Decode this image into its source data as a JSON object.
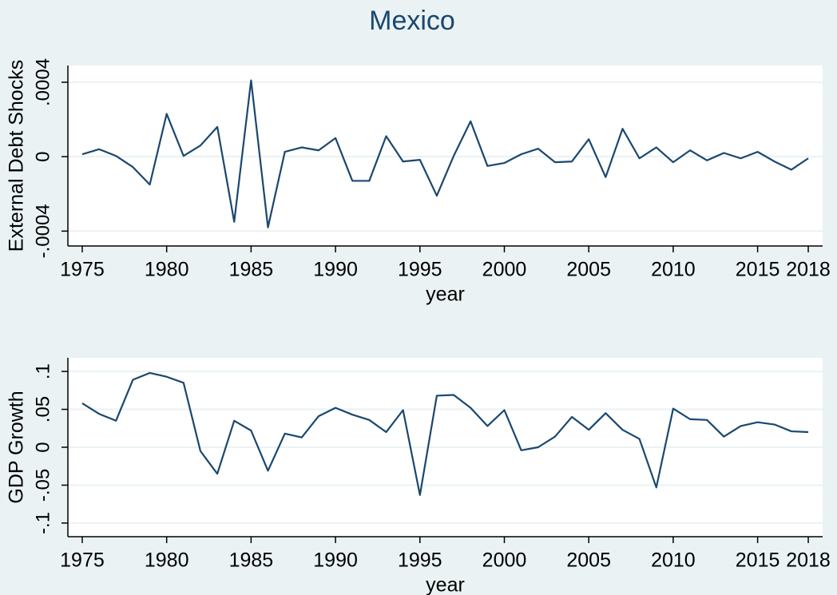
{
  "chart_data": [
    {
      "type": "line",
      "title": "Mexico",
      "xlabel": "year",
      "ylabel": "External Debt Shocks",
      "x": [
        1975,
        1976,
        1977,
        1978,
        1979,
        1980,
        1981,
        1982,
        1983,
        1984,
        1985,
        1986,
        1987,
        1988,
        1989,
        1990,
        1991,
        1992,
        1993,
        1994,
        1995,
        1996,
        1997,
        1998,
        1999,
        2000,
        2001,
        2002,
        2003,
        2004,
        2005,
        2006,
        2007,
        2008,
        2009,
        2010,
        2011,
        2012,
        2013,
        2014,
        2015,
        2016,
        2017,
        2018
      ],
      "series": [
        {
          "color": "#1a476f",
          "values": [
            1.3e-05,
            4e-05,
            4e-06,
            -5.6e-05,
            -0.00015,
            0.00023,
            4e-06,
            6e-05,
            0.00016,
            -0.00035,
            0.00041,
            -0.00038,
            2.6e-05,
            5e-05,
            3.4e-05,
            0.0001,
            -0.00013,
            -0.00013,
            0.00011,
            -2.6e-05,
            -1.7e-05,
            -0.00021,
            4e-06,
            0.00019,
            -5e-05,
            -3.4e-05,
            1.3e-05,
            4.3e-05,
            -3e-05,
            -2.6e-05,
            9.4e-05,
            -0.00011,
            0.00015,
            -9e-06,
            5e-05,
            -3e-05,
            3.4e-05,
            -2e-05,
            2e-05,
            -9e-06,
            2.6e-05,
            -2.6e-05,
            -7e-05,
            -9e-06
          ]
        }
      ],
      "xlim": [
        1974.15,
        2018.85
      ],
      "xticks": [
        1975,
        1980,
        1985,
        1990,
        1995,
        2000,
        2005,
        2010,
        2015,
        2018
      ],
      "ylim": [
        -0.00048,
        0.00049
      ],
      "yticks": [
        {
          "value": -0.0004,
          "label": "-.0004"
        },
        0,
        {
          "value": 0.0004,
          "label": ".0004"
        }
      ],
      "grid": true
    },
    {
      "type": "line",
      "xlabel": "year",
      "ylabel": "GDP Growth",
      "x": [
        1975,
        1976,
        1977,
        1978,
        1979,
        1980,
        1981,
        1982,
        1983,
        1984,
        1985,
        1986,
        1987,
        1988,
        1989,
        1990,
        1991,
        1992,
        1993,
        1994,
        1995,
        1996,
        1997,
        1998,
        1999,
        2000,
        2001,
        2002,
        2003,
        2004,
        2005,
        2006,
        2007,
        2008,
        2009,
        2010,
        2011,
        2012,
        2013,
        2014,
        2015,
        2016,
        2017,
        2018
      ],
      "series": [
        {
          "color": "#1a476f",
          "values": [
            0.058,
            0.044,
            0.035,
            0.089,
            0.098,
            0.093,
            0.085,
            -0.005,
            -0.035,
            0.035,
            0.022,
            -0.031,
            0.018,
            0.013,
            0.041,
            0.052,
            0.043,
            0.036,
            0.02,
            0.049,
            -0.063,
            0.068,
            0.069,
            0.052,
            0.028,
            0.049,
            -0.004,
            0.0,
            0.014,
            0.04,
            0.023,
            0.045,
            0.023,
            0.011,
            -0.053,
            0.051,
            0.037,
            0.036,
            0.014,
            0.028,
            0.033,
            0.03,
            0.021,
            0.02
          ]
        }
      ],
      "xlim": [
        1974.15,
        2018.85
      ],
      "xticks": [
        1975,
        1980,
        1985,
        1990,
        1995,
        2000,
        2005,
        2010,
        2015,
        2018
      ],
      "ylim": [
        -0.118,
        0.118
      ],
      "yticks": [
        {
          "value": -0.1,
          "label": "-.1"
        },
        {
          "value": -0.05,
          "label": "-.05"
        },
        0,
        {
          "value": 0.05,
          "label": ".05"
        },
        {
          "value": 0.1,
          "label": ".1"
        }
      ],
      "grid": true
    }
  ]
}
